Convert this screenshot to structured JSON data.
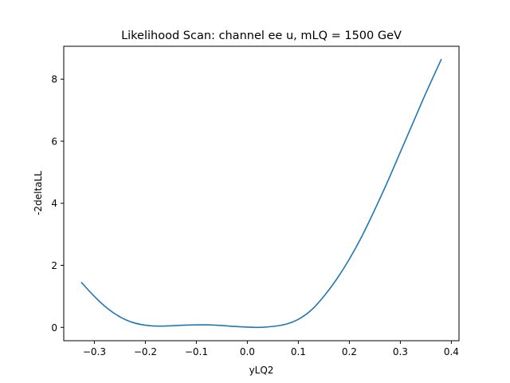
{
  "chart_data": {
    "type": "line",
    "title": "Likelihood Scan: channel ee u, mLQ = 1500 GeV",
    "xlabel": "yLQ2",
    "ylabel": "-2deltaLL",
    "xlim": [
      -0.36,
      0.415
    ],
    "ylim": [
      -0.43,
      9.06
    ],
    "xticks": [
      -0.3,
      -0.2,
      -0.1,
      0.0,
      0.1,
      0.2,
      0.3,
      0.4
    ],
    "xtick_labels": [
      "−0.3",
      "−0.2",
      "−0.1",
      "0.0",
      "0.1",
      "0.2",
      "0.3",
      "0.4"
    ],
    "yticks": [
      0,
      2,
      4,
      6,
      8
    ],
    "ytick_labels": [
      "0",
      "2",
      "4",
      "6",
      "8"
    ],
    "grid": false,
    "series": [
      {
        "color": "#1f77b4",
        "x": [
          -0.325,
          -0.3,
          -0.275,
          -0.25,
          -0.225,
          -0.2,
          -0.175,
          -0.15,
          -0.125,
          -0.1,
          -0.075,
          -0.05,
          -0.025,
          0.0,
          0.025,
          0.05,
          0.075,
          0.1,
          0.125,
          0.15,
          0.175,
          0.2,
          0.225,
          0.25,
          0.275,
          0.3,
          0.325,
          0.35,
          0.38
        ],
        "y": [
          1.44,
          1.0,
          0.62,
          0.34,
          0.16,
          0.07,
          0.04,
          0.05,
          0.07,
          0.08,
          0.08,
          0.06,
          0.03,
          0.01,
          0.0,
          0.03,
          0.1,
          0.26,
          0.55,
          1.0,
          1.55,
          2.2,
          2.95,
          3.8,
          4.7,
          5.65,
          6.6,
          7.55,
          8.63
        ]
      }
    ]
  }
}
